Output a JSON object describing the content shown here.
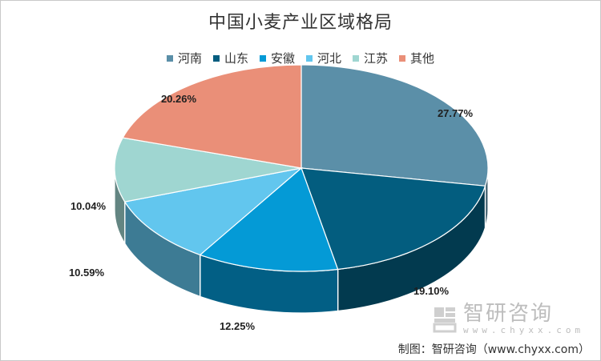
{
  "chart_data": {
    "type": "pie",
    "title": "中国小麦产业区域格局",
    "categories": [
      "河南",
      "山东",
      "安徽",
      "河北",
      "江苏",
      "其他"
    ],
    "values": [
      27.77,
      19.1,
      12.25,
      10.59,
      10.04,
      20.26
    ],
    "labels": [
      "27.77%",
      "19.10%",
      "12.25%",
      "10.59%",
      "10.04%",
      "20.26%"
    ],
    "colors": [
      "#5b8fa8",
      "#035d7f",
      "#049ad6",
      "#62c6ee",
      "#9fd6d1",
      "#ea8f78"
    ],
    "legend_position": "top"
  },
  "watermark": {
    "name": "智研咨询",
    "url": "www.chyxx.com"
  },
  "source": "制图：智研咨询（www.chyxx.com）"
}
